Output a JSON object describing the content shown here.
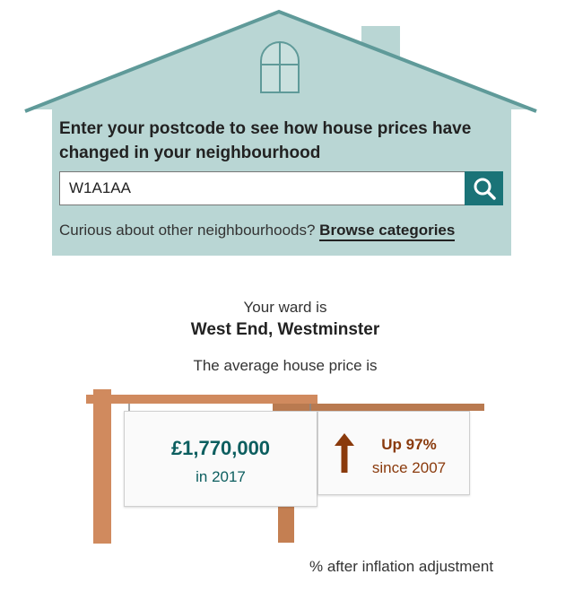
{
  "search": {
    "prompt": "Enter your postcode to see how house prices have changed in your neighbourhood",
    "value": "W1A1AA",
    "button_icon": "search-icon"
  },
  "browse": {
    "text": "Curious about other neighbourhoods?",
    "link_label": "Browse categories"
  },
  "ward": {
    "intro": "Your ward is",
    "name": "West End, Westminster"
  },
  "average": {
    "intro": "The average house price is",
    "price": "£1,770,000",
    "year": "in 2017"
  },
  "change": {
    "arrow_icon": "up-arrow-icon",
    "label": "Up 97%",
    "since": "since 2007"
  },
  "footnote": "% after inflation adjustment",
  "colors": {
    "house": "#b9d6d4",
    "roof_edge": "#5f9a99",
    "accent": "#1a7377",
    "price_text": "#0c5e5f",
    "change_text": "#8a3a0c",
    "wood": "#d08a5e"
  }
}
